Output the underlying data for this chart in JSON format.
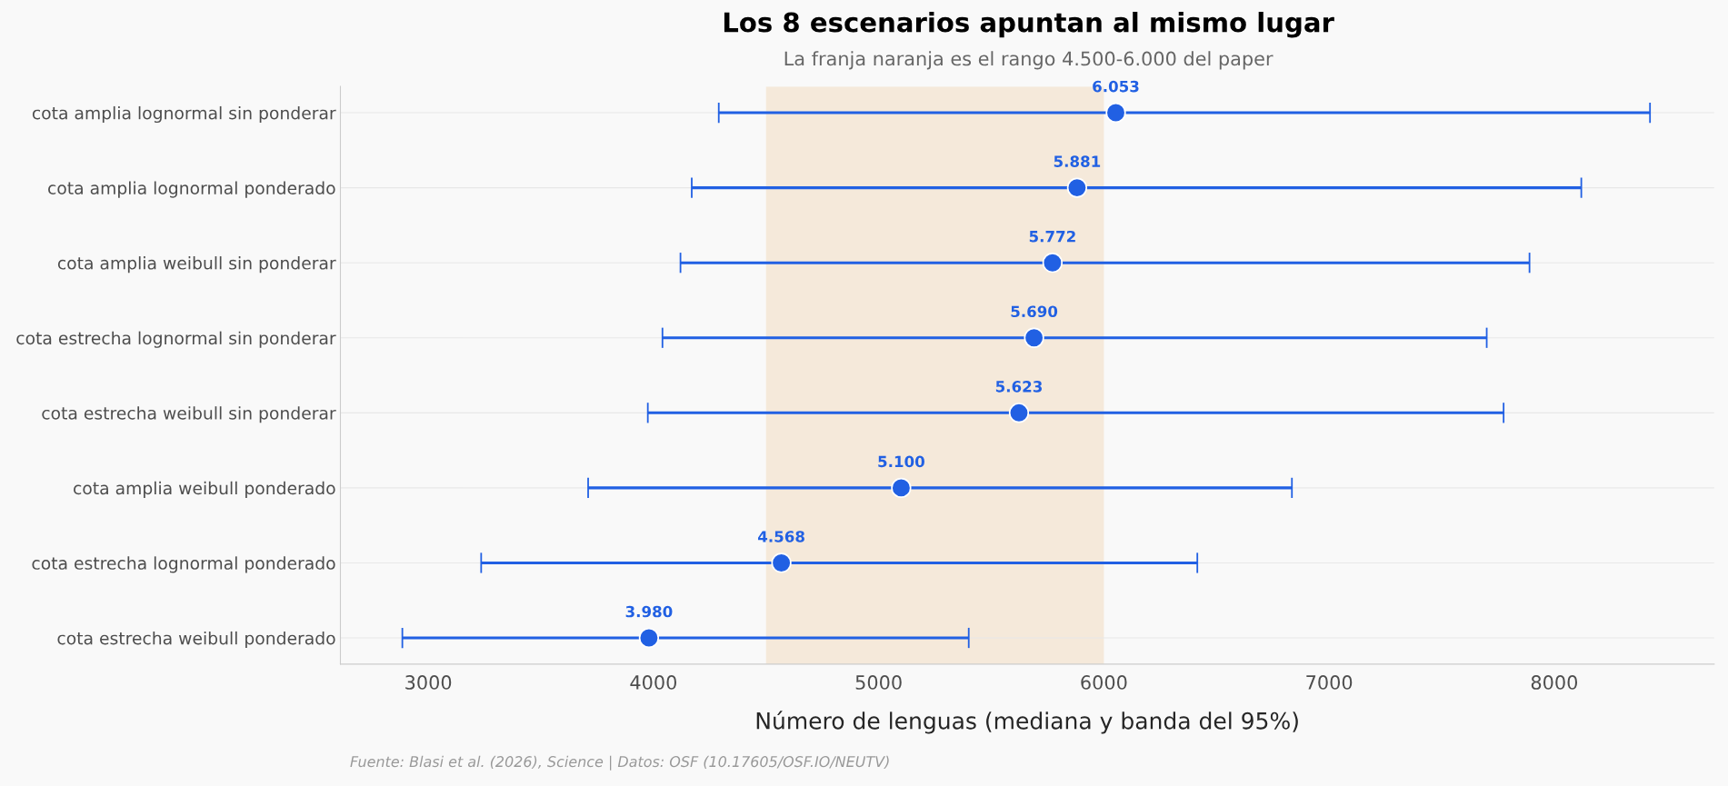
{
  "chart_data": {
    "type": "scatter",
    "orientation": "horizontal",
    "title": "Los 8 escenarios apuntan al mismo lugar",
    "subtitle": "La franja naranja es el rango 4.500-6.000 del paper",
    "xlabel": "Número de lenguas (mediana y banda del 95%)",
    "annotations": [
      "Fuente: Blasi et al. (2026), Science | Datos: OSF (10.17605/OSF.IO/NEUTV)"
    ],
    "categories": [
      "cota amplia lognormal sin ponderar",
      "cota amplia lognormal ponderado",
      "cota amplia weibull sin ponderar",
      "cota estrecha lognormal sin ponderar",
      "cota estrecha weibull sin ponderar",
      "cota amplia weibull ponderado",
      "cota estrecha lognormal ponderado",
      "cota estrecha weibull ponderado"
    ],
    "series": [
      {
        "color": "#2160e3",
        "values": [
          6053,
          5881,
          5772,
          5690,
          5623,
          5100,
          4568,
          3980
        ],
        "errors": [
          [
            4290,
            8425
          ],
          [
            4170,
            8120
          ],
          [
            4120,
            7890
          ],
          [
            4040,
            7700
          ],
          [
            3975,
            7775
          ],
          [
            3710,
            6835
          ],
          [
            3235,
            6415
          ],
          [
            2885,
            5400
          ]
        ],
        "value_labels": [
          "6.053",
          "5.881",
          "5.772",
          "5.690",
          "5.623",
          "5.100",
          "4.568",
          "3.980"
        ]
      }
    ],
    "bands": [
      {
        "axis": "x",
        "from": 4500,
        "to": 6000,
        "color": "#f5e9da"
      }
    ],
    "xlim": [
      2610,
      8710
    ],
    "xticks": [
      3000,
      4000,
      5000,
      6000,
      7000,
      8000
    ],
    "grid": "y",
    "marker": "circle"
  }
}
